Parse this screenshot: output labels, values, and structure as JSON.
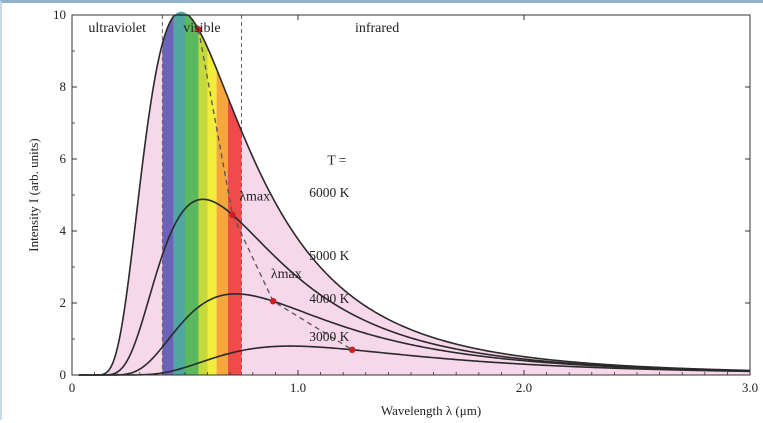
{
  "chart_data": {
    "type": "line",
    "title": "",
    "xlabel": "Wavelength  λ  (μm)",
    "ylabel": "Intensity  I  (arb. units)",
    "xlim": [
      0,
      3.0
    ],
    "ylim": [
      0,
      10
    ],
    "x_ticks": [
      {
        "value": 0,
        "label": "0"
      },
      {
        "value": 1,
        "label": "1.0"
      },
      {
        "value": 2,
        "label": "2.0"
      },
      {
        "value": 3,
        "label": "3.0"
      }
    ],
    "y_ticks": [
      {
        "value": 0,
        "label": "0"
      },
      {
        "value": 2,
        "label": "2"
      },
      {
        "value": 4,
        "label": "4"
      },
      {
        "value": 6,
        "label": "6"
      },
      {
        "value": 8,
        "label": "8"
      },
      {
        "value": 10,
        "label": "10"
      }
    ],
    "regions": [
      {
        "name": "ultraviolet",
        "x_from": 0,
        "x_to": 0.4
      },
      {
        "name": "visible",
        "x_from": 0.4,
        "x_to": 0.75
      },
      {
        "name": "infrared",
        "x_from": 0.75,
        "x_to": 3.0
      }
    ],
    "region_boundaries": [
      0.4,
      0.75
    ],
    "temperature_label": "T =",
    "series": [
      {
        "name": "6000 K",
        "temperature_K": 6000,
        "peak_x": 0.56,
        "peak_y": 9.6
      },
      {
        "name": "5000 K",
        "temperature_K": 5000,
        "peak_x": 0.71,
        "peak_y": 4.45
      },
      {
        "name": "4000 K",
        "temperature_K": 4000,
        "peak_x": 0.89,
        "peak_y": 2.05
      },
      {
        "name": "3000 K",
        "temperature_K": 3000,
        "peak_x": 1.24,
        "peak_y": 0.7
      }
    ],
    "annotations": [
      "λmax",
      "λmax"
    ],
    "spectrum_bands": [
      {
        "from": 0.4,
        "to": 0.45,
        "color": "#6a63b8"
      },
      {
        "from": 0.45,
        "to": 0.5,
        "color": "#4fa8a0"
      },
      {
        "from": 0.5,
        "to": 0.56,
        "color": "#5cb85c"
      },
      {
        "from": 0.56,
        "to": 0.6,
        "color": "#c6d93a"
      },
      {
        "from": 0.6,
        "to": 0.64,
        "color": "#f2ec3a"
      },
      {
        "from": 0.64,
        "to": 0.69,
        "color": "#f6a63a"
      },
      {
        "from": 0.69,
        "to": 0.75,
        "color": "#f04a4a"
      }
    ],
    "colors": {
      "fill_under_6000K": "#f7d7ea",
      "curve": "#2a2a2a",
      "wien_line": "#555555",
      "peak_marker": "#cc1f1f",
      "boundary": "#666666"
    },
    "grid": false
  }
}
